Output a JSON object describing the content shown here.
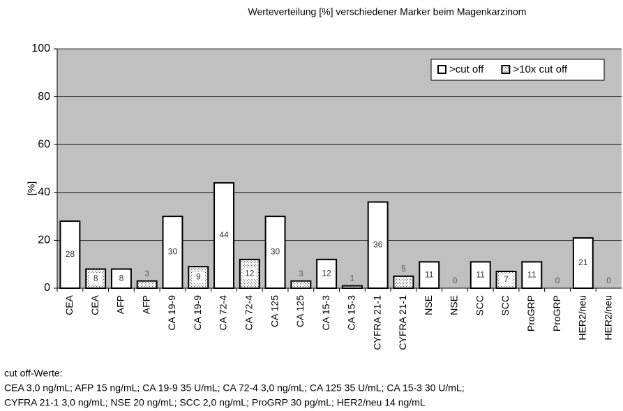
{
  "chart_data": {
    "type": "bar",
    "title": "Werteverteilung [%] verschiedener Marker beim Magenkarzinom",
    "y_label": "[%]",
    "categories": [
      "CEA",
      "CEA",
      "AFP",
      "AFP",
      "CA 19-9",
      "CA 19-9",
      "CA 72-4",
      "CA 72-4",
      "CA 125",
      "CA 125",
      "CA 15-3",
      "CA 15-3",
      "CYFRA 21-1",
      "CYFRA 21-1",
      "NSE",
      "NSE",
      "SCC",
      "SCC",
      "ProGRP",
      "ProGRP",
      "HER2/neu",
      "HER2/neu"
    ],
    "series": [
      {
        "name": ">cut off",
        "color": "#ffffff",
        "values": [
          28,
          null,
          8,
          null,
          30,
          null,
          44,
          null,
          30,
          null,
          12,
          null,
          36,
          null,
          11,
          null,
          11,
          null,
          11,
          null,
          21,
          null
        ]
      },
      {
        "name": ">10x cut off",
        "color": "#ffffff",
        "pattern": "dots",
        "values": [
          null,
          8,
          null,
          3,
          null,
          9,
          null,
          12,
          null,
          3,
          null,
          1,
          null,
          5,
          null,
          0,
          null,
          7,
          null,
          0,
          null,
          0
        ]
      }
    ],
    "ylim": [
      0,
      100
    ],
    "yticks": [
      0,
      20,
      40,
      60,
      80,
      100
    ],
    "grid": true,
    "legend": "top-right",
    "annotations": [
      "cut off-Werte:",
      "CEA  3,0 ng/mL; AFP 15 ng/mL; CA 19-9  35 U/mL; CA 72-4  3,0 ng/mL; CA 125  35 U/mL; CA 15-3  30 U/mL;",
      "CYFRA 21-1  3,0 ng/mL; NSE 20 ng/mL; SCC 2,0 ng/mL; ProGRP 30 pg/mL; HER2/neu 14 ng/mL"
    ]
  }
}
